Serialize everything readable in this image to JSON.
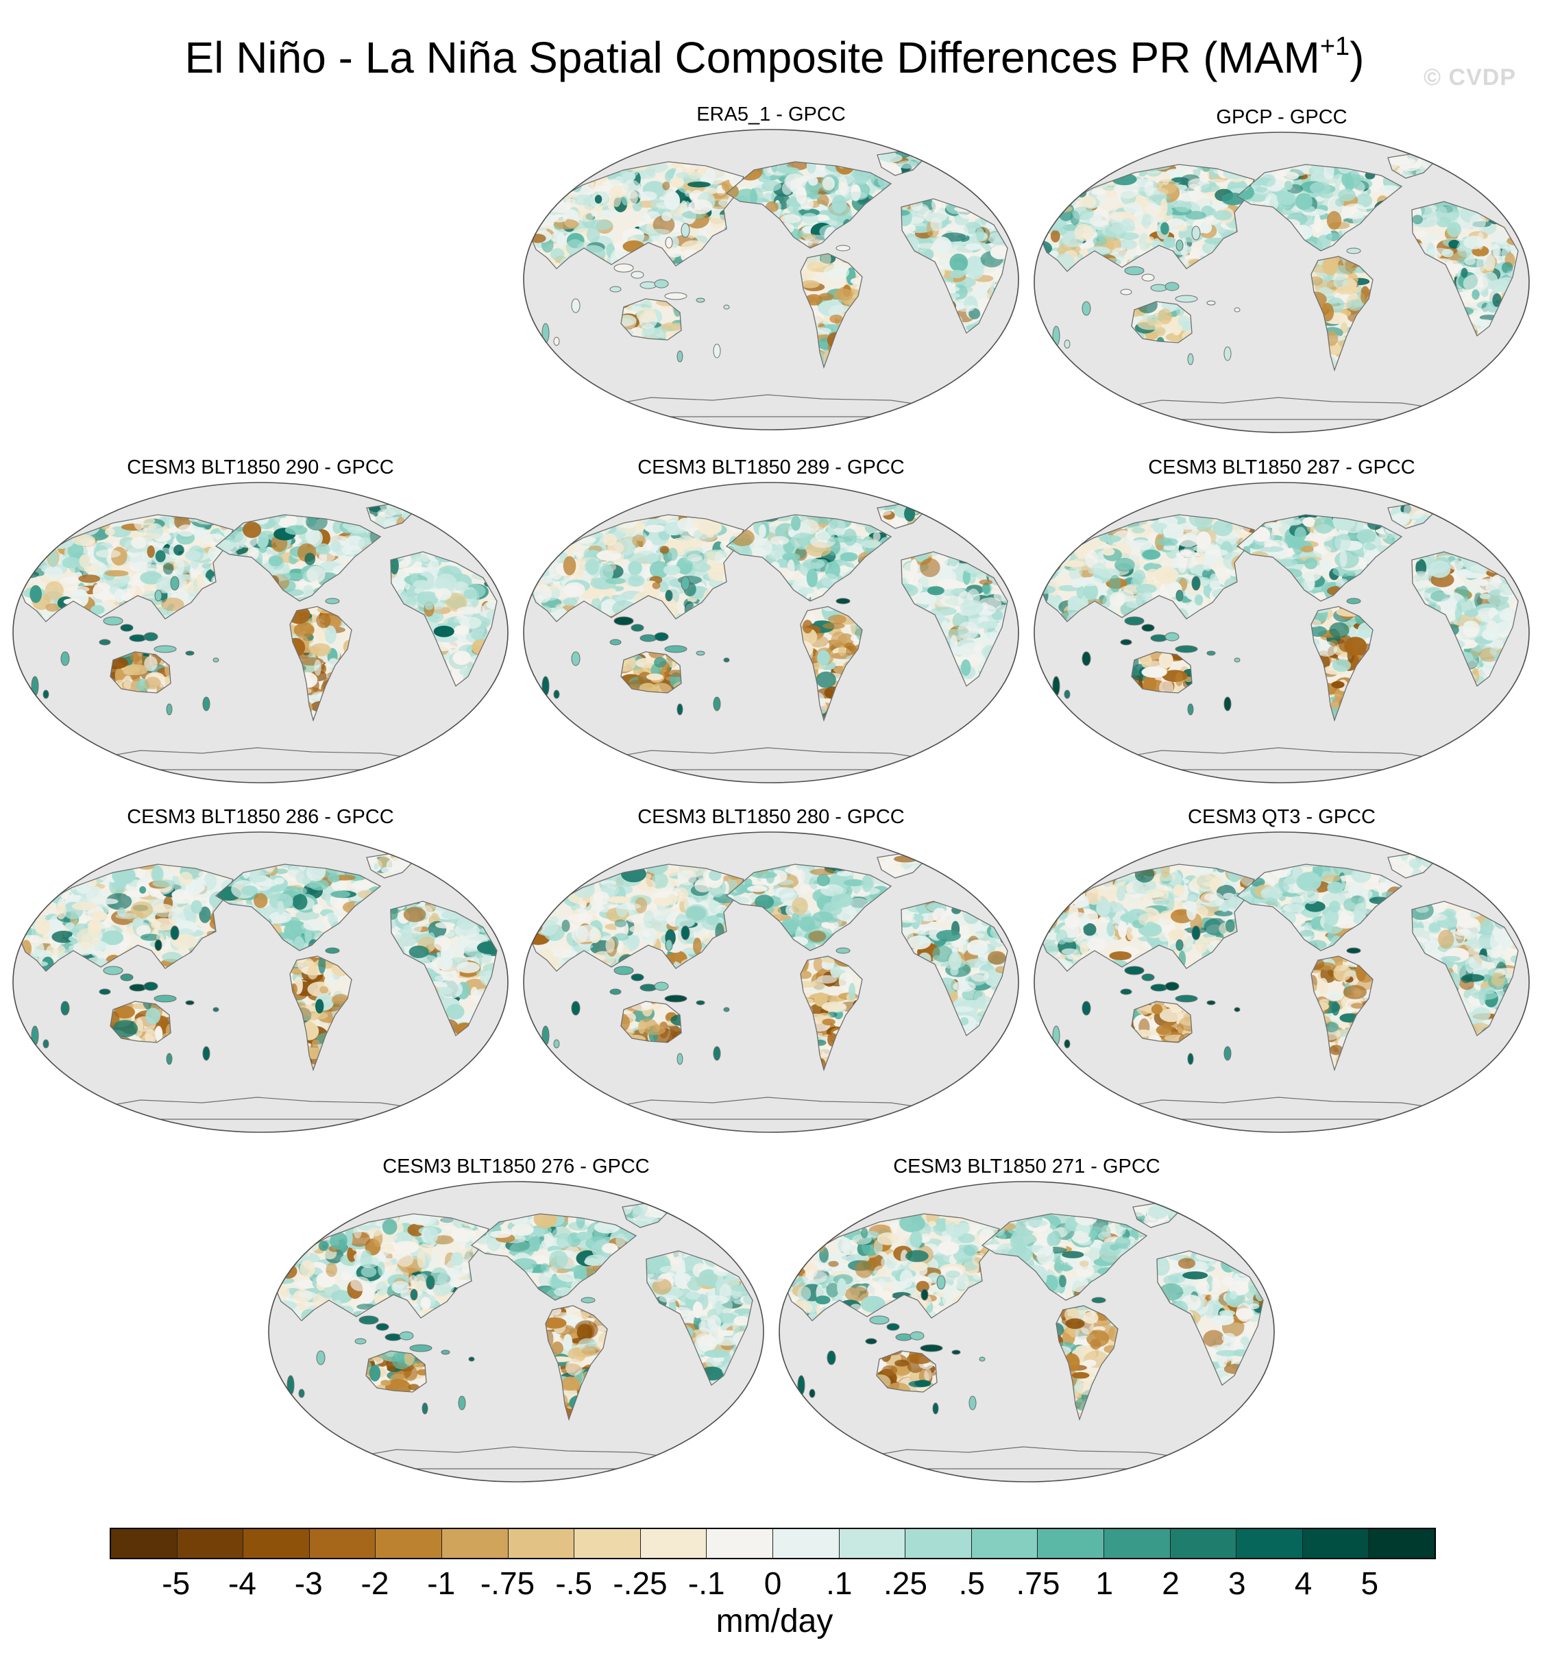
{
  "title_main": "El Niño - La Niña Spatial Composite Differences PR (MAM",
  "title_sup": "+1",
  "title_close": ")",
  "watermark": "© CVDP",
  "panels": [
    {
      "label": "ERA5_1 - GPCC",
      "variant": "obs_a"
    },
    {
      "label": "GPCP - GPCC",
      "variant": "obs_b"
    },
    {
      "label": "CESM3 BLT1850 290 - GPCC",
      "variant": "model"
    },
    {
      "label": "CESM3 BLT1850 289 - GPCC",
      "variant": "model"
    },
    {
      "label": "CESM3 BLT1850 287 - GPCC",
      "variant": "model"
    },
    {
      "label": "CESM3 BLT1850 286 - GPCC",
      "variant": "model"
    },
    {
      "label": "CESM3 BLT1850 280 - GPCC",
      "variant": "model"
    },
    {
      "label": "CESM3 QT3 - GPCC",
      "variant": "model"
    },
    {
      "label": "CESM3 BLT1850 276 - GPCC",
      "variant": "model"
    },
    {
      "label": "CESM3 BLT1850 271 - GPCC",
      "variant": "model"
    }
  ],
  "colorbar": {
    "colors": [
      "#5a3205",
      "#744007",
      "#8f520b",
      "#a6671a",
      "#bd8230",
      "#d1a45c",
      "#e2c385",
      "#eed9ab",
      "#f5ead2",
      "#f5f3ef",
      "#e8f2f0",
      "#c8e8e2",
      "#a7ddd3",
      "#84cfc0",
      "#5cb8a6",
      "#3a9a89",
      "#1f7d6e",
      "#066659",
      "#004f42",
      "#00392e"
    ],
    "labels": [
      "-5",
      "-4",
      "-3",
      "-2",
      "-1",
      "-.75",
      "-.5",
      "-.25",
      "-.1",
      "0",
      ".1",
      ".25",
      ".5",
      ".75",
      "1",
      "2",
      "3",
      "4",
      "5"
    ],
    "units": "mm/day"
  },
  "map_style": {
    "ocean": "#e6e6e6",
    "coast": "#6e6e6e",
    "land_base": "#f3efe4"
  }
}
